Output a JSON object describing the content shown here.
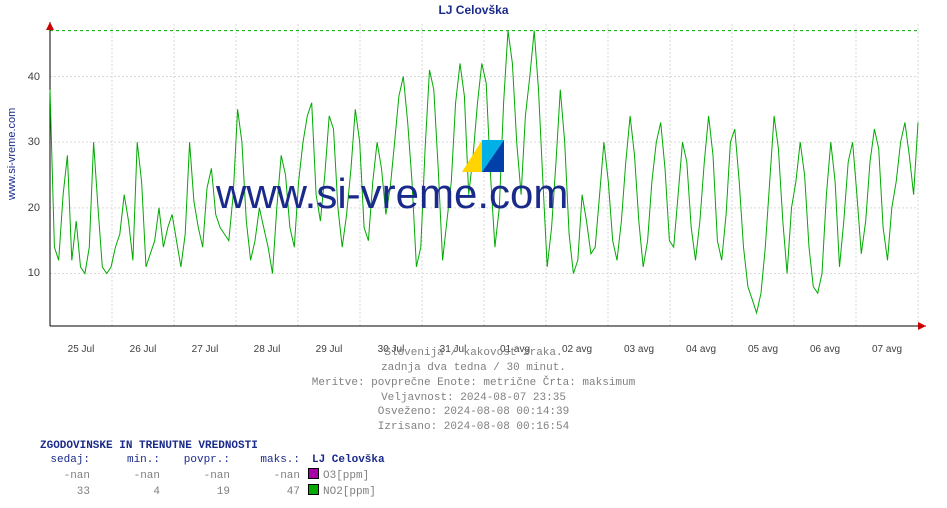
{
  "chart": {
    "title": "LJ Celovška",
    "ylabel": "www.si-vreme.com",
    "watermark_text": "www.si-vreme.com",
    "plot_bg": "#ffffff",
    "grid_color": "#d9d9d9",
    "grid_dash": "2 2",
    "axis_color": "#000000",
    "arrow_color": "#cc0000",
    "title_color": "#1a2a8a",
    "ylim": [
      2,
      48
    ],
    "yticks": [
      10,
      20,
      30,
      40
    ],
    "ref_line": {
      "value": 47,
      "color": "#00aa00",
      "dash": "3 3"
    },
    "xticks": [
      "25 Jul",
      "26 Jul",
      "27 Jul",
      "28 Jul",
      "29 Jul",
      "30 Jul",
      "31 Jul",
      "01 avg",
      "02 avg",
      "03 avg",
      "04 avg",
      "05 avg",
      "06 avg",
      "07 avg"
    ],
    "series": {
      "color": "#00aa00",
      "width": 1,
      "values": [
        38,
        14,
        12,
        22,
        28,
        12,
        18,
        11,
        10,
        14,
        30,
        20,
        11,
        10,
        11,
        14,
        16,
        22,
        18,
        12,
        30,
        24,
        11,
        13,
        15,
        20,
        14,
        17,
        19,
        15,
        11,
        16,
        30,
        21,
        17,
        14,
        23,
        26,
        19,
        17,
        16,
        15,
        22,
        35,
        30,
        18,
        12,
        15,
        20,
        17,
        14,
        10,
        20,
        28,
        25,
        17,
        14,
        24,
        30,
        34,
        36,
        22,
        18,
        25,
        34,
        32,
        20,
        14,
        19,
        26,
        35,
        30,
        17,
        15,
        24,
        30,
        26,
        19,
        23,
        30,
        37,
        40,
        33,
        24,
        11,
        14,
        29,
        41,
        38,
        26,
        12,
        18,
        24,
        36,
        42,
        37,
        22,
        28,
        36,
        42,
        39,
        25,
        14,
        20,
        36,
        47,
        42,
        30,
        22,
        34,
        40,
        47,
        38,
        24,
        11,
        17,
        27,
        38,
        30,
        16,
        10,
        12,
        22,
        18,
        13,
        14,
        22,
        30,
        24,
        15,
        12,
        18,
        27,
        34,
        28,
        18,
        11,
        15,
        24,
        30,
        33,
        26,
        15,
        14,
        22,
        30,
        27,
        17,
        12,
        18,
        27,
        34,
        28,
        15,
        12,
        19,
        30,
        32,
        24,
        14,
        8,
        6,
        4,
        7,
        14,
        24,
        34,
        29,
        18,
        10,
        20,
        24,
        30,
        25,
        14,
        8,
        7,
        10,
        22,
        30,
        24,
        11,
        18,
        27,
        30,
        22,
        13,
        18,
        27,
        32,
        29,
        17,
        12,
        20,
        24,
        30,
        33,
        28,
        22,
        33
      ]
    }
  },
  "info": {
    "line1": "Slovenija / kakovost zraka.",
    "line2": "zadnja dva tedna / 30 minut.",
    "line3": "Meritve: povprečne  Enote: metrične  Črta: maksimum",
    "validity_label": "Veljavnost:",
    "validity_value": "2024-08-07 23:35",
    "refreshed_label": "Osveženo:",
    "refreshed_value": "2024-08-08 00:14:39",
    "drawn_label": "Izrisano:",
    "drawn_value": "2024-08-08 00:16:54"
  },
  "stats": {
    "header": "ZGODOVINSKE IN TRENUTNE VREDNOSTI",
    "labels": {
      "sedaj": "sedaj:",
      "min": "min.:",
      "povpr": "povpr.:",
      "maks": "maks.:"
    },
    "station": "LJ Celovška",
    "rows": [
      {
        "sedaj": "-nan",
        "min": "-nan",
        "povpr": "-nan",
        "maks": "-nan",
        "marker_color": "#aa00aa",
        "label": "O3[ppm]"
      },
      {
        "sedaj": "33",
        "min": "4",
        "povpr": "19",
        "maks": "47",
        "marker_color": "#00aa00",
        "label": "NO2[ppm]"
      }
    ]
  },
  "watermark_logo": {
    "colors": [
      "#ffd400",
      "#00b0e6",
      "#0040a8"
    ]
  }
}
